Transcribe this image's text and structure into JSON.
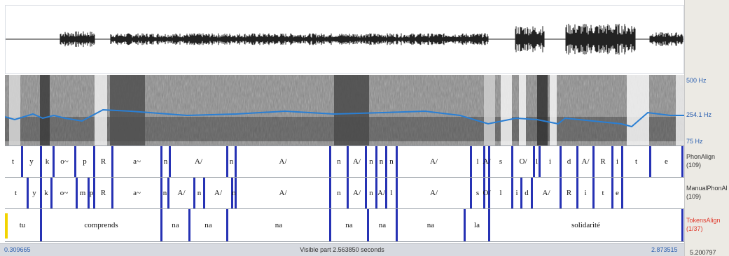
{
  "panel_labels": {
    "freq_top": "500 Hz",
    "freq_mid": "254.1 Hz",
    "freq_bottom": "75 Hz",
    "phon_name": "PhonAlign",
    "phon_count": "(109)",
    "manual_name": "ManualPhonAl",
    "manual_count": "(109)",
    "tokens_name": "TokensAlign",
    "tokens_count": "(1/37)"
  },
  "colors": {
    "boundary": "#2632b4",
    "pitch": "#2a7fd4",
    "tokens_label": "#e03a2c",
    "selection": "#f2d400"
  },
  "time": {
    "start": "0.309665",
    "end": "2.873515",
    "visible": "Visible part 2.563850 seconds",
    "total": "5.200797"
  },
  "tiers": {
    "phon": {
      "labels": [
        "t",
        "y",
        "k",
        "o~",
        "p",
        "R",
        "a~",
        "n",
        "A/",
        "n",
        "A/",
        "n",
        "A/",
        "n",
        "n",
        "n",
        "A/",
        "l",
        "A/",
        "s",
        "O/",
        "l",
        "i",
        "d",
        "A/",
        "R",
        "i",
        "t",
        "e"
      ]
    },
    "manual": {
      "labels": [
        "t",
        "y",
        "k",
        "o~",
        "m",
        "p",
        "R",
        "a~",
        "n",
        "A/",
        "n",
        "A/",
        "n",
        "A/",
        "n",
        "A/",
        "n",
        "A/",
        "l",
        "A/",
        "s",
        "O/",
        "l",
        "i",
        "d",
        "A/",
        "R",
        "i",
        "t",
        "e"
      ]
    },
    "tokens": {
      "labels": [
        "tu",
        "comprends",
        "na",
        "na",
        "na",
        "na",
        "na",
        "na",
        "la",
        "solidarité"
      ]
    }
  }
}
